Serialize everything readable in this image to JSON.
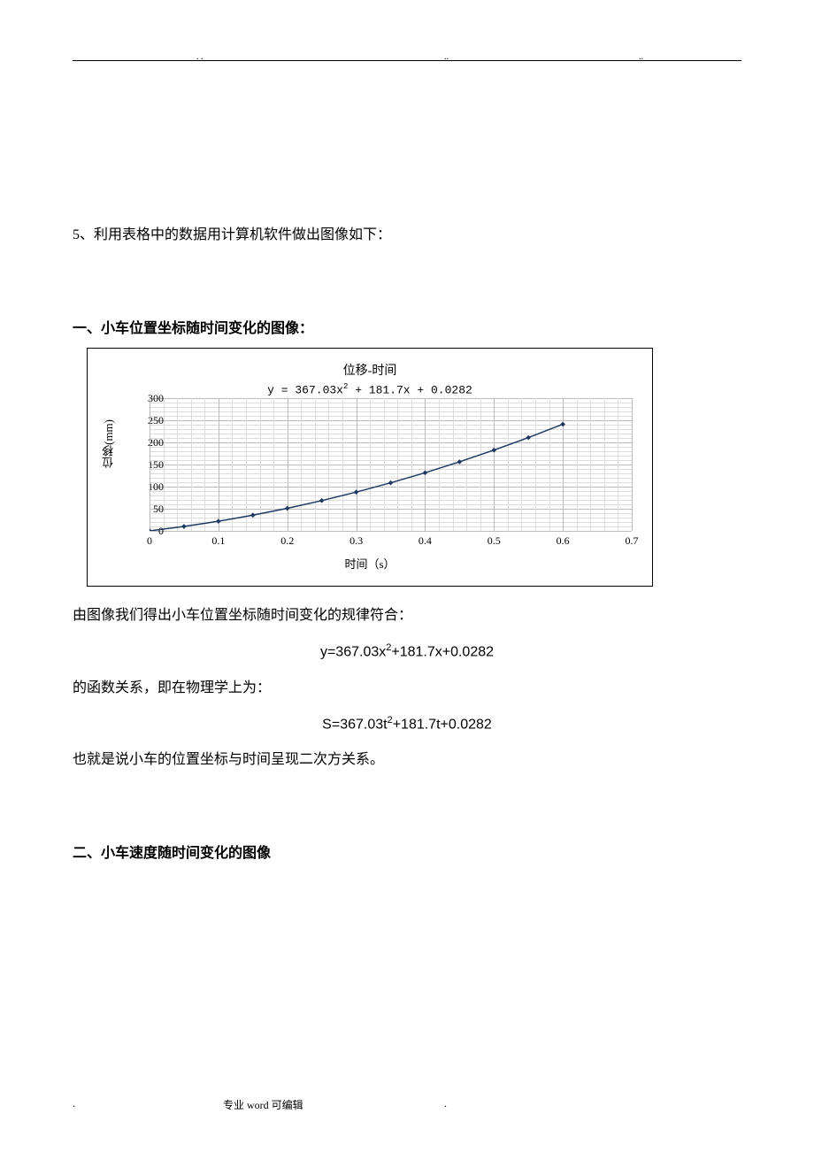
{
  "intro_line": "5、利用表格中的数据用计算机软件做出图像如下：",
  "section1_title": "一、小车位置坐标随时间变化的图像：",
  "chart": {
    "type": "scatter-line",
    "title": "位移-时间",
    "formula_text": "y = 367.03x",
    "formula_exp": "2",
    "formula_tail": " + 181.7x + 0.0282",
    "ylabel": "位移(mm)",
    "xlabel": "时间（s）",
    "background_color": "#ffffff",
    "grid_color": "#bbbbbb",
    "grid_minor_color": "#dddddd",
    "line_color": "#203864",
    "marker_color": "#203864",
    "marker_size": 4,
    "ylim": [
      0,
      300
    ],
    "xlim": [
      0,
      0.7
    ],
    "yticks": [
      0,
      50,
      100,
      150,
      200,
      250,
      300
    ],
    "xticks": [
      "0",
      "0.1",
      "0.2",
      "0.3",
      "0.4",
      "0.5",
      "0.6",
      "0.7"
    ],
    "x_values": [
      0,
      0.05,
      0.1,
      0.15,
      0.2,
      0.25,
      0.3,
      0.35,
      0.4,
      0.45,
      0.5,
      0.55,
      0.6
    ],
    "y_values": [
      0.03,
      10.0,
      21.8,
      35.5,
      51.0,
      68.4,
      87.6,
      108.6,
      131.4,
      156.1,
      182.6,
      210.9,
      241.1
    ]
  },
  "para2": "由图像我们得出小车位置坐标随时间变化的规律符合：",
  "formula1_a": "y=367.03x",
  "formula1_sup": "2",
  "formula1_b": "+181.7x+0.0282",
  "para3": "的函数关系，即在物理学上为：",
  "formula2_a": "S=367.03t",
  "formula2_sup": "2",
  "formula2_b": "+181.7t+0.0282",
  "para4": "也就是说小车的位置坐标与时间呈现二次方关系。",
  "section2_title": "二、小车速度随时间变化的图像",
  "footer_left": ".",
  "footer_mid": "专业 word 可编辑",
  "footer_right": "."
}
